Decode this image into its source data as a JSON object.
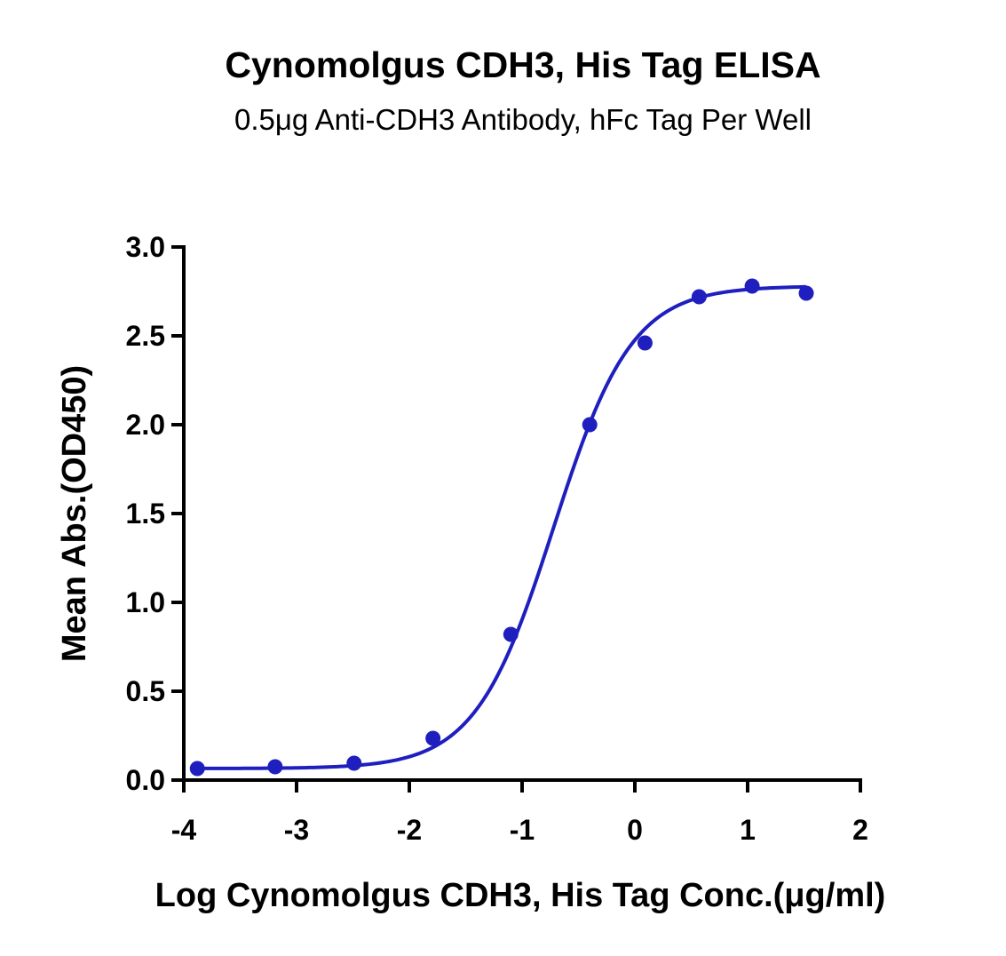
{
  "chart_data": {
    "type": "scatter",
    "title": "Cynomolgus CDH3, His Tag ELISA",
    "subtitle": "0.5μg Anti-CDH3 Antibody, hFc Tag Per Well",
    "xlabel": "Log Cynomolgus CDH3, His Tag Conc.(μg/ml)",
    "ylabel": "Mean Abs.(OD450)",
    "xlim": [
      -4,
      2
    ],
    "ylim": [
      0,
      3.0
    ],
    "x_ticks": [
      "-4",
      "-3",
      "-2",
      "-1",
      "0",
      "1",
      "2"
    ],
    "y_ticks": [
      "0.0",
      "0.5",
      "1.0",
      "1.5",
      "2.0",
      "2.5",
      "3.0"
    ],
    "grid": false,
    "series": [
      {
        "x": [
          -3.88,
          -3.19,
          -2.49,
          -1.79,
          -1.1,
          -0.4,
          0.09,
          0.57,
          1.04,
          1.52
        ],
        "y": [
          0.065,
          0.075,
          0.095,
          0.235,
          0.82,
          2.0,
          2.46,
          2.72,
          2.78,
          2.74
        ]
      }
    ],
    "fit": {
      "model": "4PL",
      "bottom": 0.065,
      "top": 2.78,
      "log_ec50": -0.72,
      "hill": 1.25
    },
    "colors": {
      "series": "#1f1fbf",
      "axis": "#000000"
    }
  }
}
